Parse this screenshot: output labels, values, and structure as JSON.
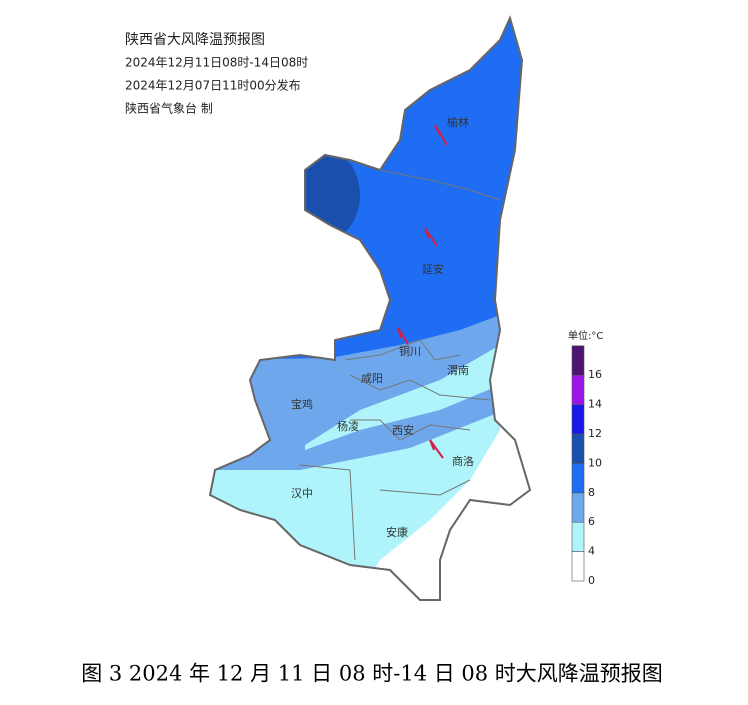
{
  "header": {
    "title": "陕西省大风降温预报图",
    "valid_period": "2024年12月11日08时-14日08时",
    "issued": "2024年12月07日11时00分发布",
    "issuer": "陕西省气象台 制"
  },
  "cities": [
    "榆林",
    "延安",
    "铜川",
    "咸阳",
    "渭南",
    "宝鸡",
    "杨凌",
    "西安",
    "商洛",
    "汉中",
    "安康"
  ],
  "legend": {
    "unit": "单位:°C",
    "ticks": [
      0,
      4,
      6,
      8,
      10,
      12,
      14,
      16
    ],
    "colors": [
      "#ffffff",
      "#aef4fa",
      "#6ea7ec",
      "#1f6df2",
      "#1b4fae",
      "#1717e6",
      "#9b14e8",
      "#4c1470"
    ]
  },
  "caption": "图 3 2024 年 12 月 11 日 08 时-14 日 08 时大风降温预报图"
}
